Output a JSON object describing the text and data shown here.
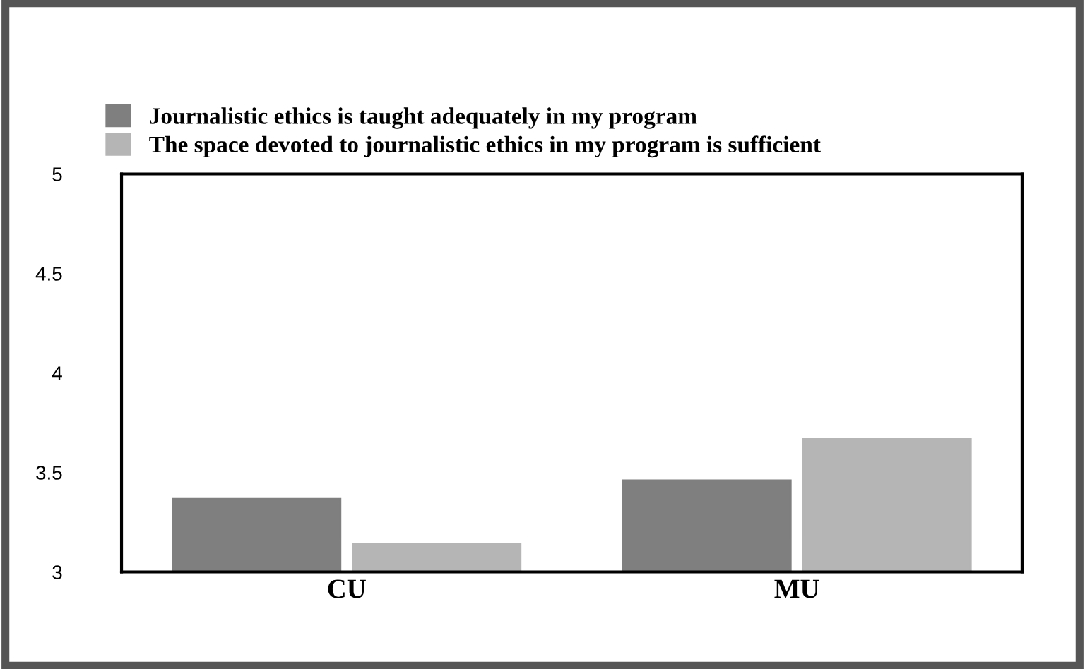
{
  "chart_data": {
    "type": "bar",
    "categories": [
      "CU",
      "MU"
    ],
    "series": [
      {
        "name": "Journalistic ethics is taught adequately in my program",
        "color": "#7f7f7f",
        "values": [
          3.37,
          3.46
        ]
      },
      {
        "name": "The space devoted to journalistic ethics in my program is sufficient",
        "color": "#b5b5b5",
        "values": [
          3.14,
          3.67
        ]
      }
    ],
    "ylim": [
      3,
      5
    ],
    "yticks": [
      3,
      {
        "value": 3.5,
        "label": "3.5"
      },
      4,
      {
        "value": 4.5,
        "label": "4.5"
      },
      5
    ],
    "grid": false,
    "legend": "top left"
  }
}
